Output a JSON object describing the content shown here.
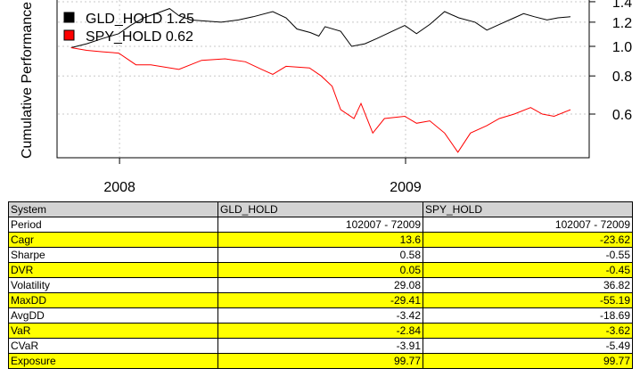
{
  "chart_data": {
    "type": "line",
    "ylabel": "Cumulative Performance",
    "x_tick_labels": [
      "2008",
      "2009"
    ],
    "y_tick_labels": [
      "0.6",
      "0.8",
      "1.0",
      "1.2",
      "1.4"
    ],
    "y_scale": "log",
    "grid": true,
    "legend_position": "top-left",
    "series": [
      {
        "name": "GLD_HOLD 1.25",
        "color": "#000000",
        "x": [
          "2007-10-31",
          "2007-11-20",
          "2007-12-10",
          "2007-12-31",
          "2008-01-15",
          "2008-02-01",
          "2008-02-20",
          "2008-03-05",
          "2008-03-17",
          "2008-04-01",
          "2008-04-20",
          "2008-05-10",
          "2008-06-01",
          "2008-06-20",
          "2008-07-15",
          "2008-08-01",
          "2008-08-15",
          "2008-09-01",
          "2008-09-12",
          "2008-09-20",
          "2008-10-10",
          "2008-10-24",
          "2008-11-10",
          "2008-11-25",
          "2008-12-15",
          "2008-12-31",
          "2009-01-15",
          "2009-02-01",
          "2009-02-20",
          "2009-03-10",
          "2009-03-31",
          "2009-04-15",
          "2009-05-01",
          "2009-05-20",
          "2009-06-01",
          "2009-06-15",
          "2009-07-01",
          "2009-07-15",
          "2009-07-31"
        ],
        "y": [
          0.99,
          1.02,
          1.06,
          1.1,
          1.17,
          1.24,
          1.29,
          1.33,
          1.26,
          1.22,
          1.21,
          1.2,
          1.22,
          1.25,
          1.3,
          1.24,
          1.14,
          1.11,
          1.08,
          1.16,
          1.12,
          1.0,
          1.02,
          1.06,
          1.12,
          1.17,
          1.1,
          1.18,
          1.3,
          1.24,
          1.2,
          1.13,
          1.18,
          1.24,
          1.28,
          1.25,
          1.22,
          1.24,
          1.25
        ]
      },
      {
        "name": "SPY_HOLD 0.62",
        "color": "#ff0000",
        "x": [
          "2007-10-31",
          "2007-11-20",
          "2007-12-10",
          "2007-12-31",
          "2008-01-22",
          "2008-02-10",
          "2008-03-17",
          "2008-04-15",
          "2008-05-15",
          "2008-06-10",
          "2008-07-01",
          "2008-07-15",
          "2008-08-01",
          "2008-08-31",
          "2008-09-15",
          "2008-09-29",
          "2008-10-10",
          "2008-10-27",
          "2008-11-05",
          "2008-11-20",
          "2008-12-05",
          "2008-12-31",
          "2009-01-15",
          "2009-02-01",
          "2009-02-20",
          "2009-03-09",
          "2009-03-25",
          "2009-04-15",
          "2009-05-01",
          "2009-05-20",
          "2009-06-10",
          "2009-06-25",
          "2009-07-10",
          "2009-07-31"
        ],
        "y": [
          0.99,
          0.97,
          0.96,
          0.95,
          0.87,
          0.87,
          0.84,
          0.9,
          0.91,
          0.89,
          0.84,
          0.81,
          0.86,
          0.85,
          0.8,
          0.74,
          0.62,
          0.58,
          0.65,
          0.52,
          0.58,
          0.59,
          0.56,
          0.57,
          0.52,
          0.45,
          0.52,
          0.55,
          0.58,
          0.6,
          0.63,
          0.6,
          0.59,
          0.62
        ]
      }
    ]
  },
  "legend": {
    "items": [
      {
        "label": "GLD_HOLD 1.25",
        "color": "#000000"
      },
      {
        "label": "SPY_HOLD 0.62",
        "color": "#ff0000"
      }
    ]
  },
  "table": {
    "headers": [
      "System",
      "GLD_HOLD",
      "SPY_HOLD"
    ],
    "rows": [
      {
        "label": "Period",
        "values": [
          "102007 - 72009",
          "102007 - 72009"
        ],
        "highlight": false
      },
      {
        "label": "Cagr",
        "values": [
          "13.6",
          "-23.62"
        ],
        "highlight": true
      },
      {
        "label": "Sharpe",
        "values": [
          "0.58",
          "-0.55"
        ],
        "highlight": false
      },
      {
        "label": "DVR",
        "values": [
          "0.05",
          "-0.45"
        ],
        "highlight": true
      },
      {
        "label": "Volatility",
        "values": [
          "29.08",
          "36.82"
        ],
        "highlight": false
      },
      {
        "label": "MaxDD",
        "values": [
          "-29.41",
          "-55.19"
        ],
        "highlight": true
      },
      {
        "label": "AvgDD",
        "values": [
          "-3.42",
          "-18.69"
        ],
        "highlight": false
      },
      {
        "label": "VaR",
        "values": [
          "-2.84",
          "-3.62"
        ],
        "highlight": true
      },
      {
        "label": "CVaR",
        "values": [
          "-3.91",
          "-5.49"
        ],
        "highlight": false
      },
      {
        "label": "Exposure",
        "values": [
          "99.77",
          "99.77"
        ],
        "highlight": true
      }
    ],
    "highlight_color": "#ffff00",
    "header_color": "#d3d3d3"
  }
}
